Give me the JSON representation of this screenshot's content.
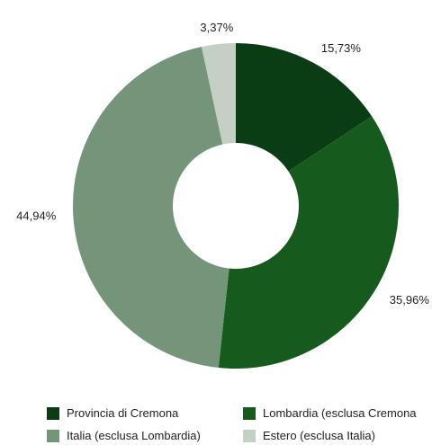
{
  "chart_data": {
    "type": "pie",
    "title": "",
    "donut": true,
    "categories": [
      "Provincia di Cremona",
      "Lombardia (esclusa Cremona",
      "Italia (esclusa Lombardia)",
      "Estero (esclusa Italia)"
    ],
    "values": [
      15.73,
      35.96,
      44.94,
      3.37
    ],
    "labels": [
      "15,73%",
      "35,96%",
      "44,94%",
      "3,37%"
    ],
    "colors": [
      "#0b3d14",
      "#175a1e",
      "#74957a",
      "#c4d0c4"
    ],
    "legend_position": "bottom"
  }
}
